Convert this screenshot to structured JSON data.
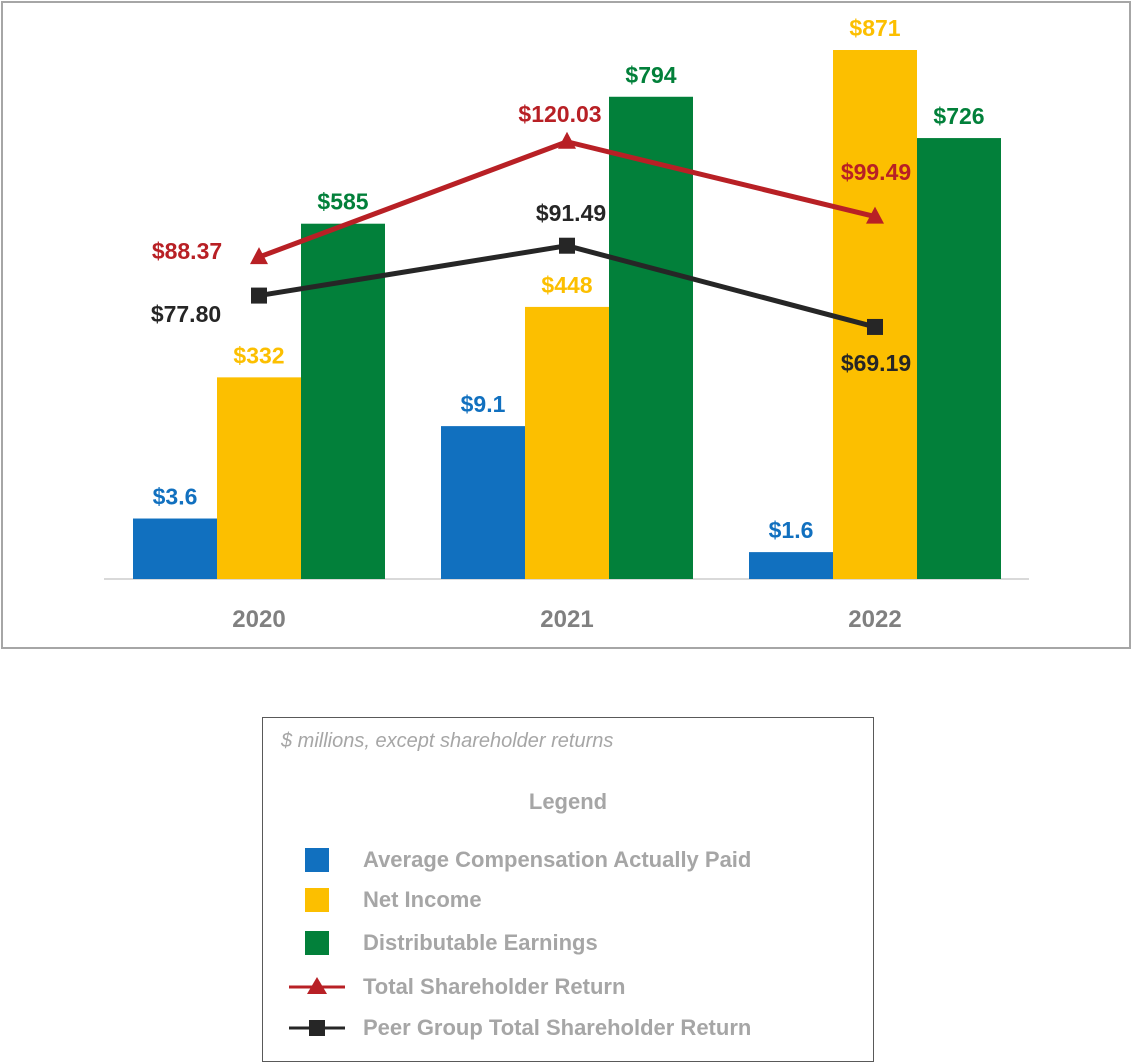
{
  "chart_data": {
    "type": "bar",
    "categories": [
      "2020",
      "2021",
      "2022"
    ],
    "series": [
      {
        "name": "Average Compensation Actually Paid",
        "kind": "bar",
        "color": "#1170bf",
        "values": [
          3.6,
          9.1,
          1.6
        ],
        "labels": [
          "$3.6",
          "$9.1",
          "$1.6"
        ]
      },
      {
        "name": "Net Income",
        "kind": "bar",
        "color": "#fcbf00",
        "values": [
          332,
          448,
          871
        ],
        "labels": [
          "$332",
          "$448",
          "$871"
        ]
      },
      {
        "name": "Distributable Earnings",
        "kind": "bar",
        "color": "#02803a",
        "values": [
          585,
          794,
          726
        ],
        "labels": [
          "$585",
          "$794",
          "$726"
        ]
      },
      {
        "name": "Total Shareholder Return",
        "kind": "line",
        "marker": "triangle",
        "color": "#b82025",
        "values": [
          88.37,
          120.03,
          99.49
        ],
        "labels": [
          "$88.37",
          "$120.03",
          "$99.49"
        ]
      },
      {
        "name": "Peer Group Total Shareholder Return",
        "kind": "line",
        "marker": "square",
        "color": "#262626",
        "values": [
          77.8,
          91.49,
          69.19
        ],
        "labels": [
          "$77.80",
          "$91.49",
          "$69.19"
        ]
      }
    ],
    "ylim_bars": [
      0,
      871
    ],
    "ylim_lines": [
      0,
      140
    ],
    "grid": false
  },
  "legend": {
    "note": "$ millions, except shareholder returns",
    "title": "Legend",
    "items": [
      {
        "label": "Average Compensation Actually Paid",
        "color": "#1170bf",
        "type": "box"
      },
      {
        "label": "Net Income",
        "color": "#fcbf00",
        "type": "box"
      },
      {
        "label": "Distributable Earnings",
        "color": "#02803a",
        "type": "box"
      },
      {
        "label": "Total Shareholder Return",
        "color": "#b82025",
        "type": "line-triangle"
      },
      {
        "label": "Peer Group Total Shareholder Return",
        "color": "#262626",
        "type": "line-square"
      }
    ]
  }
}
